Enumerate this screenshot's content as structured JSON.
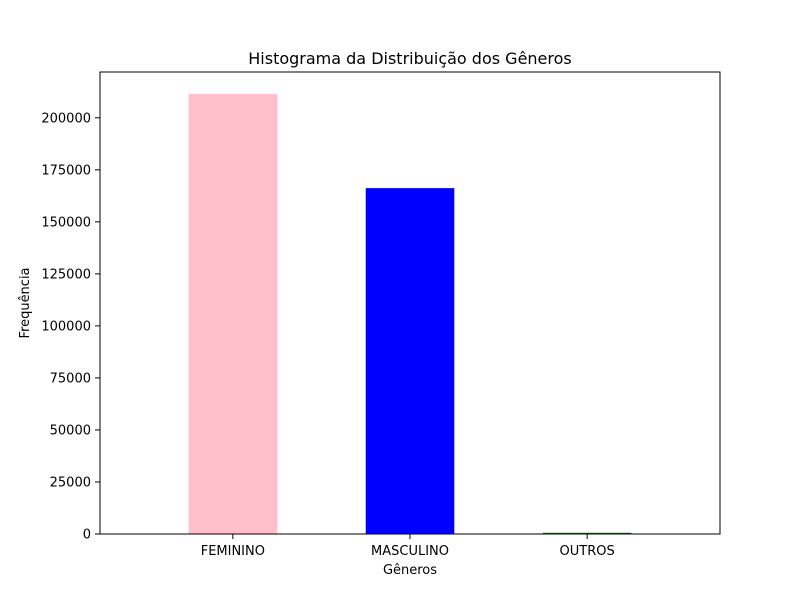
{
  "chart_data": {
    "type": "bar",
    "title": "Histograma da Distribuição dos Gêneros",
    "xlabel": "Gêneros",
    "ylabel": "Frequência",
    "categories": [
      "FEMININO",
      "MASCULINO",
      "OUTROS"
    ],
    "values": [
      211500,
      166200,
      600
    ],
    "colors": [
      "#ffc0cb",
      "#0000ff",
      "#008000"
    ],
    "ylim": [
      0,
      222000
    ],
    "yticks": [
      0,
      25000,
      50000,
      75000,
      100000,
      125000,
      150000,
      175000,
      200000
    ],
    "ytick_labels": [
      "0",
      "25000",
      "50000",
      "75000",
      "100000",
      "125000",
      "150000",
      "175000",
      "200000"
    ],
    "grid": false,
    "legend": "none"
  }
}
